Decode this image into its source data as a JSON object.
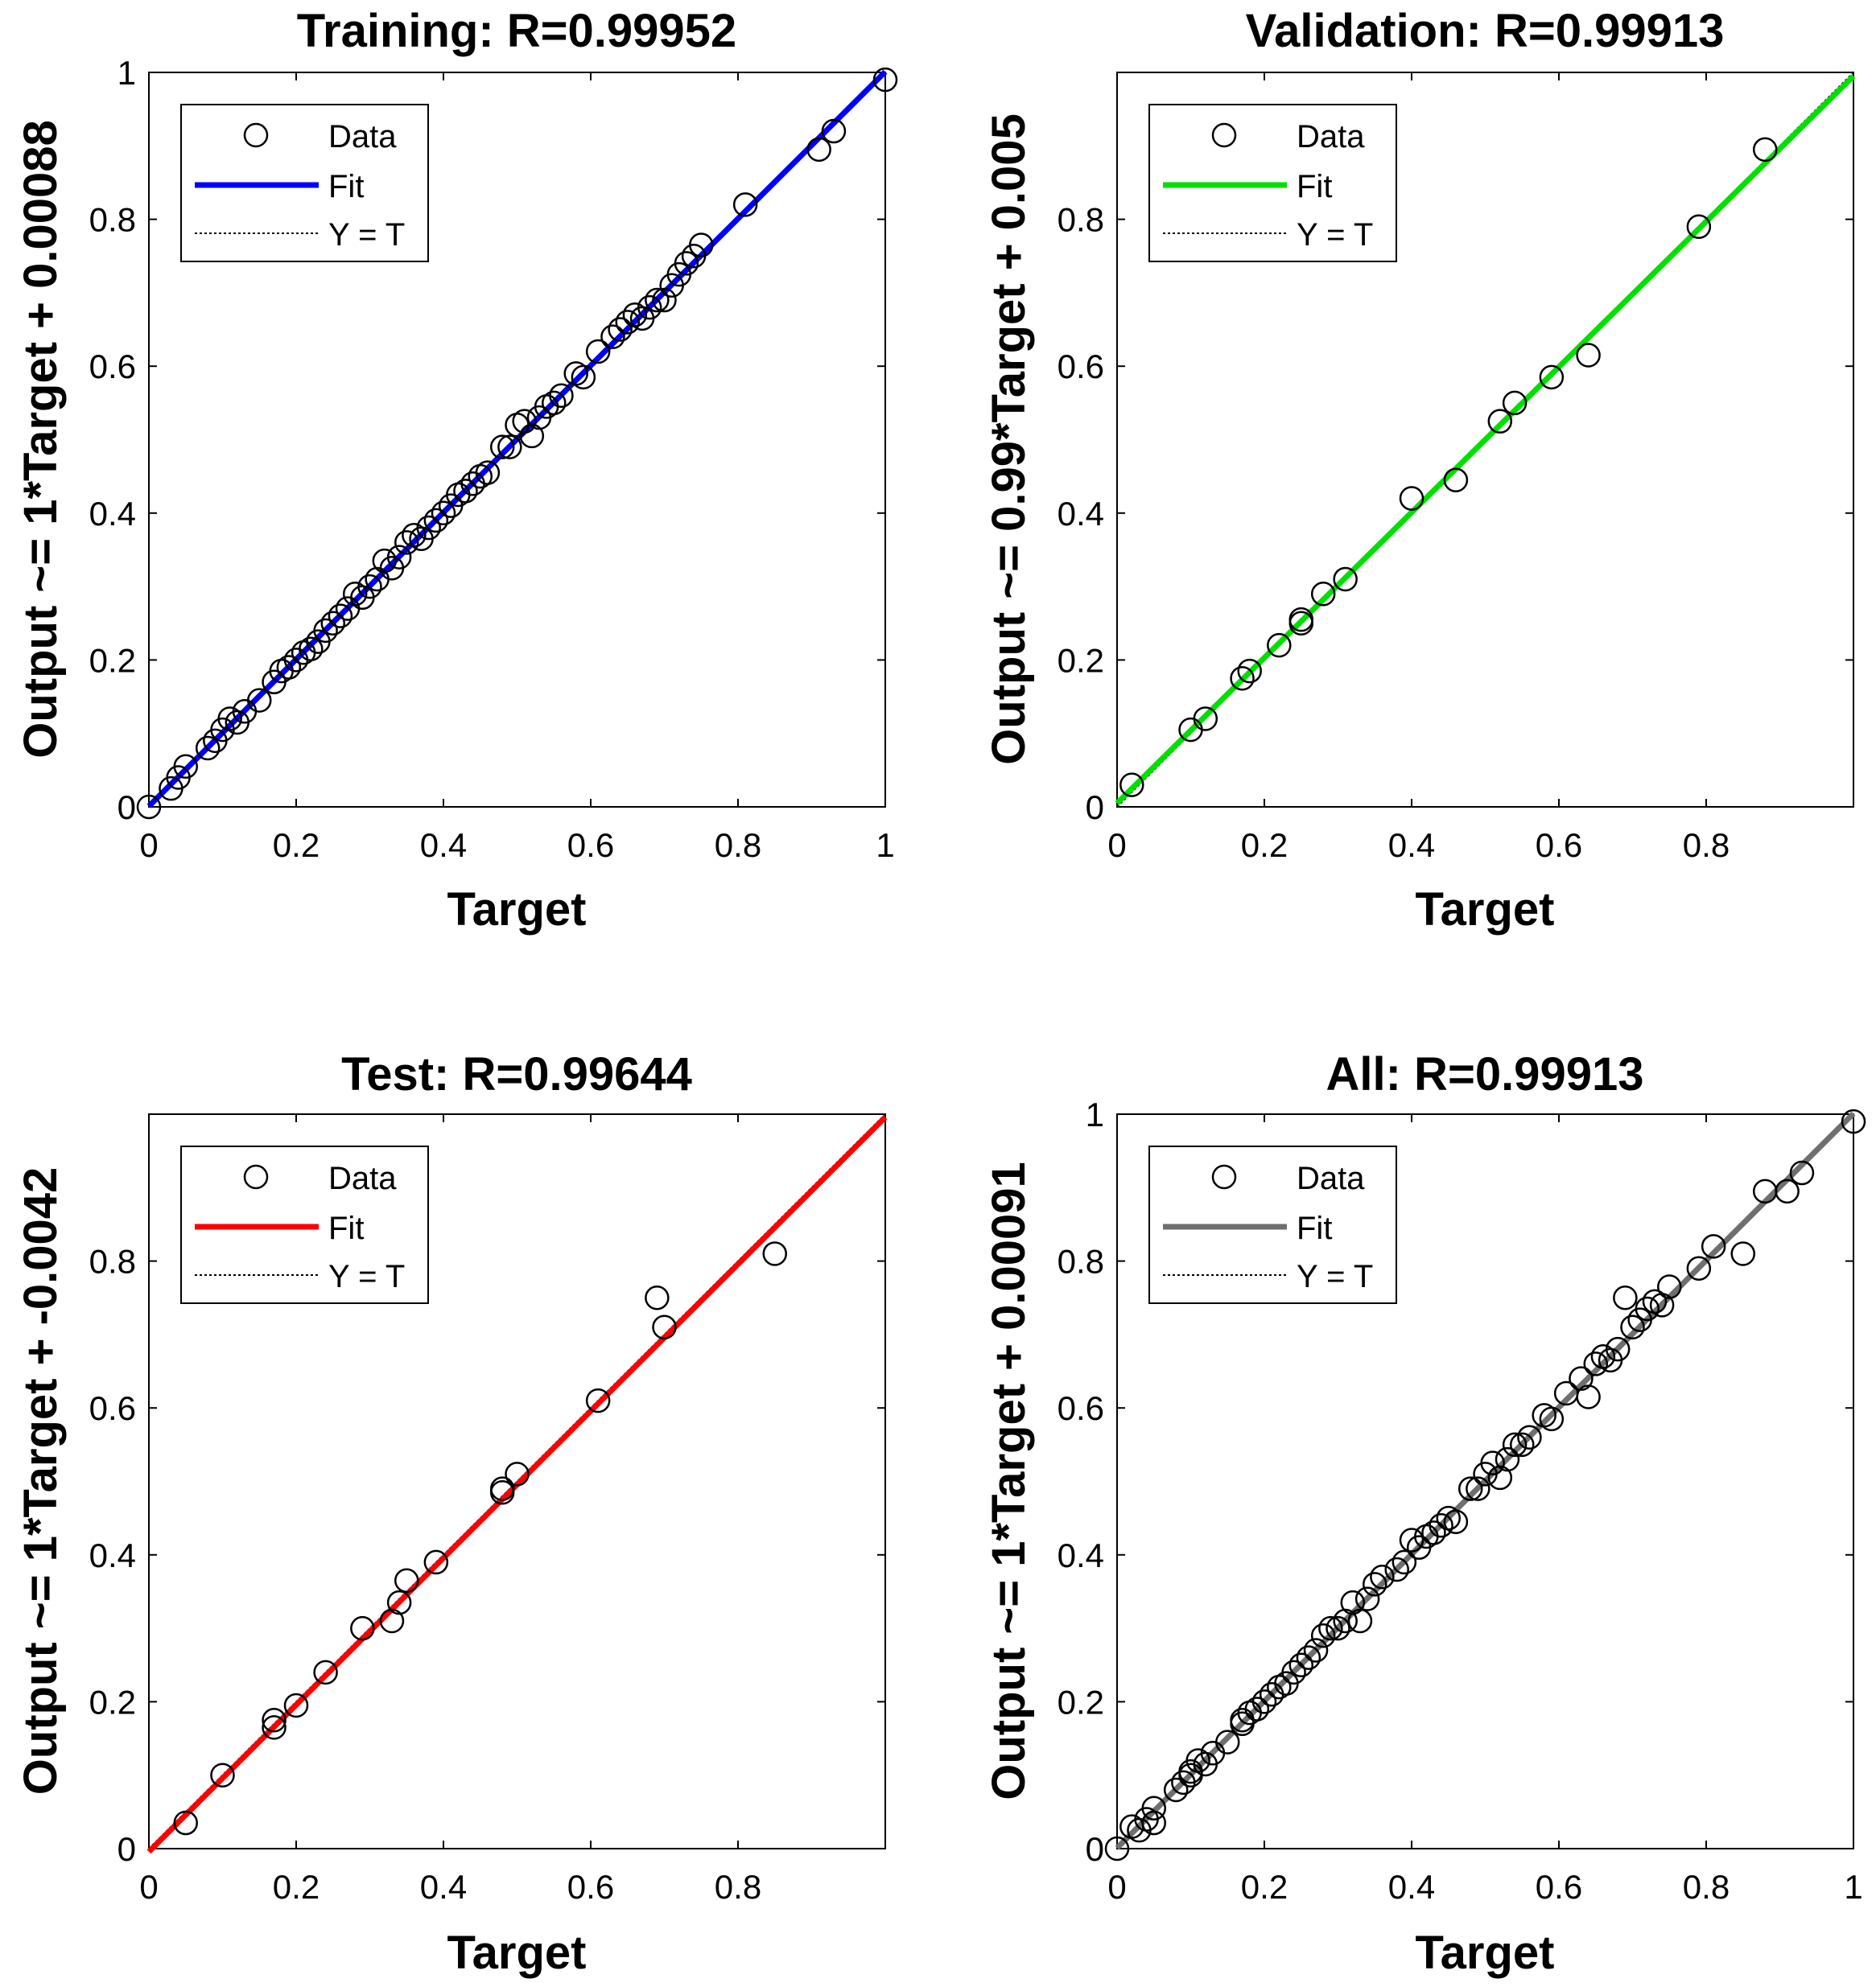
{
  "chart_data": [
    {
      "type": "scatter",
      "title": "Training: R=0.99952",
      "xlabel": "Target",
      "ylabel": "Output ~= 1*Target + 0.00088",
      "xlim": [
        0,
        1
      ],
      "ylim": [
        0,
        1
      ],
      "xticks": [
        "0",
        "0.2",
        "0.4",
        "0.6",
        "0.8",
        "1"
      ],
      "yticks": [
        "0",
        "0.2",
        "0.4",
        "0.6",
        "0.8",
        "1"
      ],
      "fit_color": "#0000ff",
      "fit": {
        "slope": 1.0,
        "intercept": 0.00088
      },
      "legend": {
        "position": "top-left",
        "entries": [
          "Data",
          "Fit",
          "Y = T"
        ]
      },
      "points": [
        [
          0.0,
          0.0
        ],
        [
          0.03,
          0.025
        ],
        [
          0.04,
          0.04
        ],
        [
          0.05,
          0.055
        ],
        [
          0.08,
          0.08
        ],
        [
          0.09,
          0.09
        ],
        [
          0.1,
          0.105
        ],
        [
          0.11,
          0.12
        ],
        [
          0.12,
          0.115
        ],
        [
          0.13,
          0.13
        ],
        [
          0.15,
          0.145
        ],
        [
          0.17,
          0.17
        ],
        [
          0.18,
          0.185
        ],
        [
          0.19,
          0.19
        ],
        [
          0.2,
          0.2
        ],
        [
          0.21,
          0.21
        ],
        [
          0.22,
          0.215
        ],
        [
          0.23,
          0.225
        ],
        [
          0.24,
          0.24
        ],
        [
          0.25,
          0.25
        ],
        [
          0.26,
          0.26
        ],
        [
          0.27,
          0.27
        ],
        [
          0.28,
          0.29
        ],
        [
          0.29,
          0.285
        ],
        [
          0.3,
          0.3
        ],
        [
          0.31,
          0.31
        ],
        [
          0.32,
          0.335
        ],
        [
          0.33,
          0.325
        ],
        [
          0.34,
          0.34
        ],
        [
          0.35,
          0.36
        ],
        [
          0.36,
          0.37
        ],
        [
          0.37,
          0.365
        ],
        [
          0.38,
          0.38
        ],
        [
          0.39,
          0.39
        ],
        [
          0.4,
          0.4
        ],
        [
          0.41,
          0.41
        ],
        [
          0.42,
          0.425
        ],
        [
          0.43,
          0.43
        ],
        [
          0.44,
          0.44
        ],
        [
          0.45,
          0.45
        ],
        [
          0.46,
          0.455
        ],
        [
          0.48,
          0.49
        ],
        [
          0.49,
          0.49
        ],
        [
          0.5,
          0.52
        ],
        [
          0.51,
          0.525
        ],
        [
          0.52,
          0.505
        ],
        [
          0.53,
          0.53
        ],
        [
          0.54,
          0.545
        ],
        [
          0.55,
          0.55
        ],
        [
          0.56,
          0.56
        ],
        [
          0.58,
          0.59
        ],
        [
          0.59,
          0.585
        ],
        [
          0.61,
          0.62
        ],
        [
          0.63,
          0.64
        ],
        [
          0.64,
          0.65
        ],
        [
          0.65,
          0.66
        ],
        [
          0.66,
          0.67
        ],
        [
          0.67,
          0.665
        ],
        [
          0.68,
          0.68
        ],
        [
          0.69,
          0.69
        ],
        [
          0.7,
          0.69
        ],
        [
          0.71,
          0.71
        ],
        [
          0.72,
          0.725
        ],
        [
          0.73,
          0.74
        ],
        [
          0.74,
          0.75
        ],
        [
          0.75,
          0.765
        ],
        [
          0.81,
          0.82
        ],
        [
          0.91,
          0.895
        ],
        [
          0.93,
          0.92
        ],
        [
          1.0,
          0.99
        ]
      ]
    },
    {
      "type": "scatter",
      "title": "Validation: R=0.99913",
      "xlabel": "Target",
      "ylabel": "Output ~= 0.99*Target + 0.005",
      "xlim": [
        0,
        1
      ],
      "ylim": [
        0,
        1
      ],
      "xticks": [
        "0",
        "0.2",
        "0.4",
        "0.6",
        "0.8",
        ""
      ],
      "yticks": [
        "0",
        "0.2",
        "0.4",
        "0.6",
        "0.8",
        ""
      ],
      "fit_color": "#00e000",
      "fit": {
        "slope": 0.99,
        "intercept": 0.005
      },
      "legend": {
        "position": "top-left",
        "entries": [
          "Data",
          "Fit",
          "Y = T"
        ]
      },
      "points": [
        [
          0.02,
          0.03
        ],
        [
          0.1,
          0.105
        ],
        [
          0.12,
          0.12
        ],
        [
          0.17,
          0.175
        ],
        [
          0.18,
          0.185
        ],
        [
          0.22,
          0.22
        ],
        [
          0.25,
          0.25
        ],
        [
          0.25,
          0.255
        ],
        [
          0.28,
          0.29
        ],
        [
          0.31,
          0.31
        ],
        [
          0.4,
          0.42
        ],
        [
          0.46,
          0.445
        ],
        [
          0.52,
          0.525
        ],
        [
          0.54,
          0.55
        ],
        [
          0.59,
          0.585
        ],
        [
          0.64,
          0.615
        ],
        [
          0.79,
          0.79
        ],
        [
          0.88,
          0.895
        ]
      ]
    },
    {
      "type": "scatter",
      "title": "Test: R=0.99644",
      "xlabel": "Target",
      "ylabel": "Output ~= 1*Target + -0.0042",
      "xlim": [
        0,
        1
      ],
      "ylim": [
        0,
        1
      ],
      "xticks": [
        "0",
        "0.2",
        "0.4",
        "0.6",
        "0.8",
        ""
      ],
      "yticks": [
        "0",
        "0.2",
        "0.4",
        "0.6",
        "0.8",
        ""
      ],
      "fit_color": "#ff0000",
      "fit": {
        "slope": 1.0,
        "intercept": -0.0042
      },
      "legend": {
        "position": "top-left",
        "entries": [
          "Data",
          "Fit",
          "Y = T"
        ]
      },
      "points": [
        [
          0.05,
          0.035
        ],
        [
          0.1,
          0.1
        ],
        [
          0.17,
          0.165
        ],
        [
          0.17,
          0.175
        ],
        [
          0.2,
          0.195
        ],
        [
          0.24,
          0.24
        ],
        [
          0.29,
          0.3
        ],
        [
          0.33,
          0.31
        ],
        [
          0.34,
          0.335
        ],
        [
          0.35,
          0.365
        ],
        [
          0.39,
          0.39
        ],
        [
          0.48,
          0.485
        ],
        [
          0.48,
          0.49
        ],
        [
          0.5,
          0.51
        ],
        [
          0.61,
          0.61
        ],
        [
          0.69,
          0.75
        ],
        [
          0.7,
          0.71
        ],
        [
          0.85,
          0.81
        ]
      ]
    },
    {
      "type": "scatter",
      "title": "All: R=0.99913",
      "xlabel": "Target",
      "ylabel": "Output ~= 1*Target + 0.00091",
      "xlim": [
        0,
        1
      ],
      "ylim": [
        0,
        1
      ],
      "xticks": [
        "0",
        "0.2",
        "0.4",
        "0.6",
        "0.8",
        "1"
      ],
      "yticks": [
        "0",
        "0.2",
        "0.4",
        "0.6",
        "0.8",
        "1"
      ],
      "fit_color": "#6f6f6f",
      "fit": {
        "slope": 1.0,
        "intercept": 0.00091
      },
      "legend": {
        "position": "top-left",
        "entries": [
          "Data",
          "Fit",
          "Y = T"
        ]
      },
      "points": [
        [
          0.0,
          0.0
        ],
        [
          0.02,
          0.03
        ],
        [
          0.03,
          0.025
        ],
        [
          0.04,
          0.04
        ],
        [
          0.05,
          0.055
        ],
        [
          0.05,
          0.035
        ],
        [
          0.08,
          0.08
        ],
        [
          0.09,
          0.09
        ],
        [
          0.1,
          0.105
        ],
        [
          0.1,
          0.1
        ],
        [
          0.11,
          0.12
        ],
        [
          0.12,
          0.115
        ],
        [
          0.13,
          0.13
        ],
        [
          0.15,
          0.145
        ],
        [
          0.17,
          0.17
        ],
        [
          0.17,
          0.175
        ],
        [
          0.18,
          0.185
        ],
        [
          0.19,
          0.19
        ],
        [
          0.2,
          0.2
        ],
        [
          0.21,
          0.21
        ],
        [
          0.22,
          0.22
        ],
        [
          0.23,
          0.225
        ],
        [
          0.24,
          0.24
        ],
        [
          0.25,
          0.25
        ],
        [
          0.26,
          0.26
        ],
        [
          0.27,
          0.27
        ],
        [
          0.28,
          0.29
        ],
        [
          0.29,
          0.3
        ],
        [
          0.3,
          0.3
        ],
        [
          0.31,
          0.31
        ],
        [
          0.32,
          0.335
        ],
        [
          0.33,
          0.31
        ],
        [
          0.34,
          0.34
        ],
        [
          0.35,
          0.36
        ],
        [
          0.36,
          0.37
        ],
        [
          0.38,
          0.38
        ],
        [
          0.39,
          0.39
        ],
        [
          0.4,
          0.42
        ],
        [
          0.41,
          0.41
        ],
        [
          0.42,
          0.425
        ],
        [
          0.43,
          0.43
        ],
        [
          0.44,
          0.44
        ],
        [
          0.45,
          0.45
        ],
        [
          0.46,
          0.445
        ],
        [
          0.48,
          0.49
        ],
        [
          0.49,
          0.49
        ],
        [
          0.5,
          0.51
        ],
        [
          0.51,
          0.525
        ],
        [
          0.52,
          0.505
        ],
        [
          0.53,
          0.53
        ],
        [
          0.54,
          0.55
        ],
        [
          0.55,
          0.55
        ],
        [
          0.56,
          0.56
        ],
        [
          0.58,
          0.59
        ],
        [
          0.59,
          0.585
        ],
        [
          0.61,
          0.62
        ],
        [
          0.63,
          0.64
        ],
        [
          0.64,
          0.615
        ],
        [
          0.65,
          0.66
        ],
        [
          0.66,
          0.67
        ],
        [
          0.67,
          0.665
        ],
        [
          0.68,
          0.68
        ],
        [
          0.69,
          0.75
        ],
        [
          0.7,
          0.71
        ],
        [
          0.71,
          0.72
        ],
        [
          0.72,
          0.735
        ],
        [
          0.73,
          0.745
        ],
        [
          0.74,
          0.74
        ],
        [
          0.75,
          0.765
        ],
        [
          0.79,
          0.79
        ],
        [
          0.81,
          0.82
        ],
        [
          0.85,
          0.81
        ],
        [
          0.88,
          0.895
        ],
        [
          0.91,
          0.895
        ],
        [
          0.93,
          0.92
        ],
        [
          1.0,
          0.99
        ]
      ]
    }
  ]
}
